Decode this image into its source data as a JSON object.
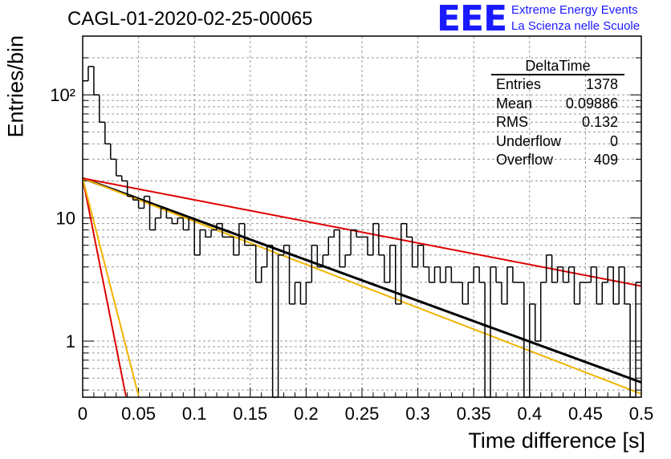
{
  "header": {
    "run_label": "CAGL-01-2020-02-25-00065",
    "logo_text": "EEE",
    "tagline_1": "Extreme Energy Events",
    "tagline_2": "La Scienza nelle Scuole"
  },
  "stats_box": {
    "title": "DeltaTime",
    "rows": [
      {
        "label": "Entries",
        "value": "1378"
      },
      {
        "label": "Mean",
        "value": "0.09886"
      },
      {
        "label": "RMS",
        "value": "0.132"
      },
      {
        "label": "Underflow",
        "value": "0"
      },
      {
        "label": "Overflow",
        "value": "409"
      }
    ]
  },
  "chart_data": {
    "type": "histogram",
    "title": "",
    "xlabel": "Time difference [s]",
    "ylabel": "Entries/bin",
    "xlim": [
      0,
      0.5
    ],
    "ylim": [
      0.35,
      300
    ],
    "yscale": "log",
    "grid": true,
    "bin_width": 0.005,
    "x_ticks": [
      "0",
      "0.05",
      "0.1",
      "0.15",
      "0.2",
      "0.25",
      "0.3",
      "0.35",
      "0.4",
      "0.45",
      "0.5"
    ],
    "y_ticks": [
      {
        "value": 1,
        "label": "1"
      },
      {
        "value": 10,
        "label": "10"
      },
      {
        "value": 100,
        "label": "10²"
      }
    ],
    "bin_contents": [
      130,
      170,
      100,
      60,
      40,
      30,
      22,
      20,
      15,
      14,
      12,
      15,
      8,
      10,
      12,
      10,
      9,
      10,
      8,
      10,
      5,
      8,
      7,
      8,
      9,
      7,
      7,
      5,
      9,
      6,
      6,
      3,
      4,
      6,
      0,
      5,
      6,
      2,
      3,
      2,
      3,
      6,
      4,
      5,
      7,
      8,
      4,
      5,
      8,
      7,
      7,
      5,
      9,
      5,
      3,
      6,
      2,
      9,
      7,
      4,
      6,
      4,
      3,
      4,
      3,
      4,
      3,
      3,
      2,
      3,
      4,
      3,
      0,
      4,
      3,
      2,
      4,
      3,
      3,
      0,
      2,
      1,
      3,
      5,
      3,
      4,
      3,
      4,
      2,
      3,
      3,
      4,
      2,
      3,
      4,
      2,
      4,
      2,
      0,
      3
    ],
    "fits": [
      {
        "color": "#000000",
        "A": 21,
        "tau": 0.131
      },
      {
        "color": "#f0b400",
        "A": 21,
        "tau": 0.124
      },
      {
        "color": "#e00000",
        "A": 21,
        "tau": 0.248
      },
      {
        "color": "#e00000",
        "A": 21,
        "tau": 0.0095
      },
      {
        "color": "#f0b400",
        "A": 21,
        "tau": 0.0123
      }
    ]
  }
}
